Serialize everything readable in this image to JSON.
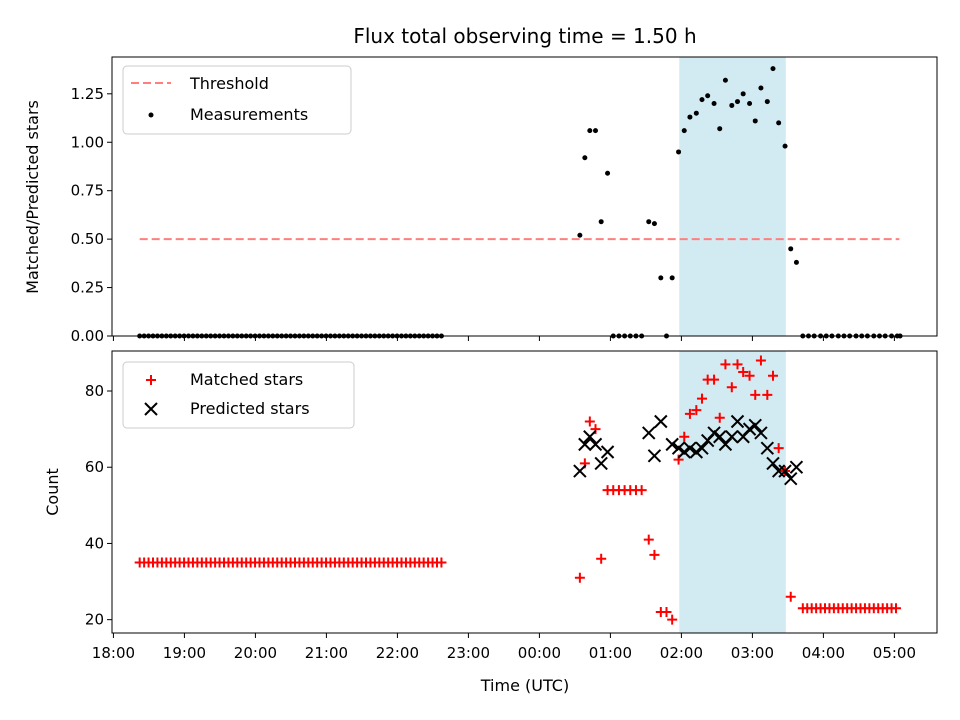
{
  "chart_data": {
    "title": "Flux total observing time = 1.50 h",
    "xlabel": "Time (UTC)",
    "x_ticks": [
      "18:00",
      "19:00",
      "20:00",
      "21:00",
      "22:00",
      "23:00",
      "00:00",
      "01:00",
      "02:00",
      "03:00",
      "04:00",
      "05:00"
    ],
    "xlim_hours": [
      17.98,
      29.6
    ],
    "shaded_interval_hours": [
      25.97,
      27.47
    ],
    "colors": {
      "threshold": "#ff7f7f",
      "matched": "#ff0000",
      "predicted": "#000000",
      "shade": "#add8e6"
    },
    "top": {
      "type": "scatter",
      "ylabel": "Matched/Predicted stars",
      "ylim": [
        0,
        1.44
      ],
      "y_ticks": [
        "0.00",
        "0.25",
        "0.50",
        "0.75",
        "1.00",
        "1.25"
      ],
      "threshold": {
        "name": "Threshold",
        "value": 0.5,
        "x_range_hours": [
          18.37,
          29.07
        ]
      },
      "measurements": {
        "name": "Measurements",
        "zero_run_1": {
          "start": 18.37,
          "step": 0.0625,
          "count": 69
        },
        "zero_run_2": {
          "start": 29.08,
          "step": 0.0625,
          "count": 0
        },
        "points": [
          [
            24.57,
            0.52
          ],
          [
            24.64,
            0.92
          ],
          [
            24.71,
            1.06
          ],
          [
            24.79,
            1.06
          ],
          [
            24.87,
            0.59
          ],
          [
            24.96,
            0.84
          ],
          [
            25.04,
            0.0
          ],
          [
            25.12,
            0.0
          ],
          [
            25.2,
            0.0
          ],
          [
            25.28,
            0.0
          ],
          [
            25.36,
            0.0
          ],
          [
            25.44,
            0.0
          ],
          [
            25.54,
            0.59
          ],
          [
            25.62,
            0.58
          ],
          [
            25.71,
            0.3
          ],
          [
            25.79,
            0.0
          ],
          [
            25.87,
            0.3
          ],
          [
            25.96,
            0.95
          ],
          [
            26.04,
            1.06
          ],
          [
            26.12,
            1.13
          ],
          [
            26.21,
            1.15
          ],
          [
            26.29,
            1.22
          ],
          [
            26.37,
            1.24
          ],
          [
            26.46,
            1.2
          ],
          [
            26.54,
            1.07
          ],
          [
            26.62,
            1.32
          ],
          [
            26.71,
            1.19
          ],
          [
            26.79,
            1.21
          ],
          [
            26.87,
            1.25
          ],
          [
            26.96,
            1.2
          ],
          [
            27.04,
            1.11
          ],
          [
            27.12,
            1.28
          ],
          [
            27.21,
            1.21
          ],
          [
            27.29,
            1.38
          ],
          [
            27.37,
            1.1
          ],
          [
            27.46,
            0.98
          ],
          [
            27.54,
            0.45
          ],
          [
            27.62,
            0.38
          ],
          [
            27.71,
            0.0
          ],
          [
            27.79,
            0.0
          ],
          [
            27.87,
            0.0
          ],
          [
            27.96,
            0.0
          ],
          [
            28.04,
            0.0
          ],
          [
            28.12,
            0.0
          ],
          [
            28.21,
            0.0
          ],
          [
            28.29,
            0.0
          ],
          [
            28.37,
            0.0
          ],
          [
            28.46,
            0.0
          ],
          [
            28.54,
            0.0
          ],
          [
            28.62,
            0.0
          ],
          [
            28.71,
            0.0
          ],
          [
            28.79,
            0.0
          ],
          [
            28.87,
            0.0
          ],
          [
            28.96,
            0.0
          ],
          [
            29.04,
            0.0
          ],
          [
            29.08,
            0.0
          ]
        ]
      },
      "legend": [
        "Threshold",
        "Measurements"
      ]
    },
    "bottom": {
      "type": "scatter",
      "ylabel": "Count",
      "ylim": [
        16.5,
        90.5
      ],
      "y_ticks": [
        20,
        40,
        60,
        80
      ],
      "matched": {
        "name": "Matched stars",
        "flat_run_1": {
          "start": 18.37,
          "step": 0.0625,
          "count": 69,
          "value": 35
        },
        "flat_run_2": {
          "start": 27.71,
          "step": 0.0625,
          "count": 22,
          "value": 23
        },
        "points": [
          [
            24.57,
            31
          ],
          [
            24.64,
            61
          ],
          [
            24.71,
            72
          ],
          [
            24.79,
            70
          ],
          [
            24.87,
            36
          ],
          [
            24.96,
            54
          ],
          [
            25.04,
            54
          ],
          [
            25.12,
            54
          ],
          [
            25.2,
            54
          ],
          [
            25.28,
            54
          ],
          [
            25.36,
            54
          ],
          [
            25.44,
            54
          ],
          [
            25.54,
            41
          ],
          [
            25.62,
            37
          ],
          [
            25.71,
            22
          ],
          [
            25.79,
            22
          ],
          [
            25.87,
            20
          ],
          [
            25.96,
            62
          ],
          [
            26.04,
            68
          ],
          [
            26.12,
            74
          ],
          [
            26.21,
            75
          ],
          [
            26.29,
            78
          ],
          [
            26.37,
            83
          ],
          [
            26.46,
            83
          ],
          [
            26.54,
            73
          ],
          [
            26.62,
            87
          ],
          [
            26.71,
            81
          ],
          [
            26.79,
            87
          ],
          [
            26.87,
            85
          ],
          [
            26.96,
            84
          ],
          [
            27.04,
            79
          ],
          [
            27.12,
            88
          ],
          [
            27.21,
            79
          ],
          [
            27.29,
            84
          ],
          [
            27.37,
            65
          ],
          [
            27.46,
            59
          ],
          [
            27.54,
            26
          ]
        ]
      },
      "predicted": {
        "name": "Predicted stars",
        "points": [
          [
            24.57,
            59
          ],
          [
            24.64,
            66
          ],
          [
            24.71,
            68
          ],
          [
            24.79,
            66
          ],
          [
            24.87,
            61
          ],
          [
            24.96,
            64
          ],
          [
            25.54,
            69
          ],
          [
            25.62,
            63
          ],
          [
            25.71,
            72
          ],
          [
            25.87,
            66
          ],
          [
            25.96,
            65
          ],
          [
            26.04,
            64
          ],
          [
            26.12,
            65
          ],
          [
            26.21,
            64
          ],
          [
            26.29,
            65
          ],
          [
            26.37,
            67
          ],
          [
            26.46,
            69
          ],
          [
            26.54,
            68
          ],
          [
            26.62,
            66
          ],
          [
            26.71,
            68
          ],
          [
            26.79,
            72
          ],
          [
            26.87,
            68
          ],
          [
            26.96,
            70
          ],
          [
            27.04,
            71
          ],
          [
            27.12,
            69
          ],
          [
            27.21,
            65
          ],
          [
            27.29,
            61
          ],
          [
            27.37,
            59
          ],
          [
            27.46,
            59
          ],
          [
            27.54,
            57
          ],
          [
            27.62,
            60
          ]
        ]
      },
      "legend": [
        "Matched stars",
        "Predicted stars"
      ]
    }
  }
}
